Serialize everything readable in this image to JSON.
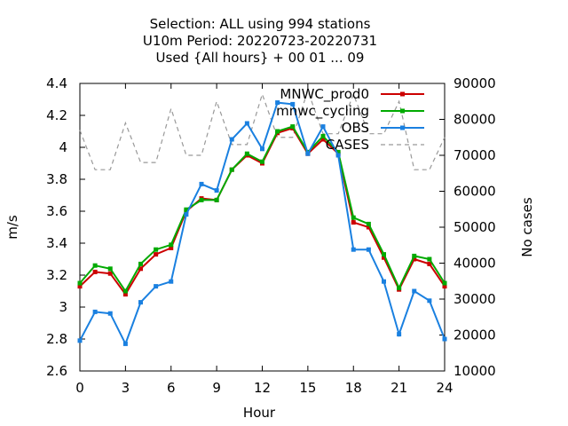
{
  "chart_data": {
    "type": "line",
    "title": [
      "Selection: ALL using   994 stations",
      "U10m   Period: 20220723-20220731",
      "Used {All hours} + 00 01 ... 09"
    ],
    "xlabel": "Hour",
    "ylabel": "m/s",
    "y2label": "No cases",
    "xlim": [
      0,
      24
    ],
    "ylim": [
      2.6,
      4.4
    ],
    "y2lim": [
      10000,
      90000
    ],
    "xticks": [
      "0",
      "3",
      "6",
      "9",
      "12",
      "15",
      "18",
      "21",
      "24"
    ],
    "yticks": [
      "2.6",
      "2.8",
      "3",
      "3.2",
      "3.4",
      "3.6",
      "3.8",
      "4",
      "4.2",
      "4.4"
    ],
    "y2ticks": [
      "10000",
      "20000",
      "30000",
      "40000",
      "50000",
      "60000",
      "70000",
      "80000",
      "90000"
    ],
    "grid": false,
    "legend_position": "top-right",
    "x": [
      0,
      1,
      2,
      3,
      4,
      5,
      6,
      7,
      8,
      9,
      10,
      11,
      12,
      13,
      14,
      15,
      16,
      17,
      18,
      19,
      20,
      21,
      22,
      23,
      24
    ],
    "series": [
      {
        "name": "MNWC_prod0",
        "color": "#cc0000",
        "axis": "y",
        "values": [
          3.13,
          3.22,
          3.21,
          3.08,
          3.24,
          3.33,
          3.37,
          3.6,
          3.68,
          3.67,
          3.86,
          3.95,
          3.9,
          4.09,
          4.12,
          3.96,
          4.05,
          3.96,
          3.53,
          3.5,
          3.31,
          3.11,
          3.3,
          3.27,
          3.13
        ]
      },
      {
        "name": "mnwc_cycling",
        "color": "#00aa00",
        "axis": "y",
        "values": [
          3.15,
          3.26,
          3.24,
          3.1,
          3.27,
          3.36,
          3.39,
          3.61,
          3.67,
          3.67,
          3.86,
          3.96,
          3.91,
          4.1,
          4.13,
          3.97,
          4.07,
          3.97,
          3.56,
          3.52,
          3.33,
          3.12,
          3.32,
          3.3,
          3.15
        ]
      },
      {
        "name": "OBS",
        "color": "#1a80e0",
        "axis": "y",
        "values": [
          2.79,
          2.97,
          2.96,
          2.77,
          3.03,
          3.13,
          3.16,
          3.58,
          3.77,
          3.73,
          4.05,
          4.15,
          3.99,
          4.28,
          4.27,
          3.96,
          4.13,
          3.95,
          3.36,
          3.36,
          3.16,
          2.83,
          3.1,
          3.04,
          2.8
        ]
      },
      {
        "name": "CASES",
        "color": "#999999",
        "axis": "y2",
        "values": [
          77000,
          66000,
          66000,
          79000,
          68000,
          68000,
          83000,
          70000,
          70000,
          85000,
          73000,
          73000,
          87000,
          75000,
          75000,
          88000,
          76000,
          76000,
          87000,
          76000,
          76000,
          85000,
          66000,
          66000,
          75000
        ]
      }
    ]
  }
}
